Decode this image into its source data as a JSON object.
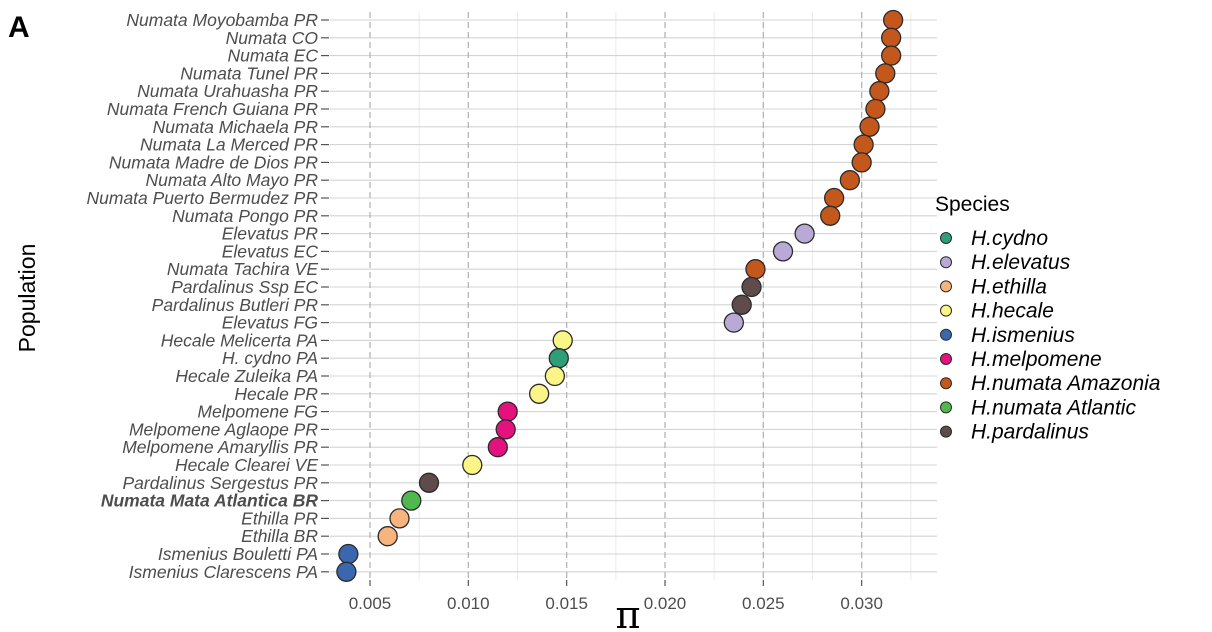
{
  "panel_label": "A",
  "chart_data": {
    "type": "scatter",
    "xlabel": "π",
    "ylabel": "Population",
    "xlim": [
      0.0033,
      0.0337
    ],
    "x_ticks": [
      0.005,
      0.01,
      0.015,
      0.02,
      0.025,
      0.03
    ],
    "x_tick_labels": [
      "0.005",
      "0.010",
      "0.015",
      "0.020",
      "0.025",
      "0.030"
    ],
    "grid": true,
    "legend_title": "Species",
    "legend_position": "right",
    "species": [
      {
        "name": "H.cydno",
        "color": "#2e9e78"
      },
      {
        "name": "H.elevatus",
        "color": "#b8a9d6"
      },
      {
        "name": "H.ethilla",
        "color": "#f7b47c"
      },
      {
        "name": "H.hecale",
        "color": "#fbf587"
      },
      {
        "name": "H.ismenius",
        "color": "#3a67ad"
      },
      {
        "name": "H.melpomene",
        "color": "#e3127f"
      },
      {
        "name": "H.numata Amazonia",
        "color": "#c4571b"
      },
      {
        "name": "H.numata Atlantic",
        "color": "#50b94e"
      },
      {
        "name": "H.pardalinus",
        "color": "#5f4b4b"
      }
    ],
    "points": [
      {
        "population": "Numata Moyobamba PR",
        "pi": 0.0316,
        "species": "H.numata Amazonia"
      },
      {
        "population": "Numata CO",
        "pi": 0.0315,
        "species": "H.numata Amazonia"
      },
      {
        "population": "Numata EC",
        "pi": 0.0315,
        "species": "H.numata Amazonia"
      },
      {
        "population": "Numata Tunel PR",
        "pi": 0.0312,
        "species": "H.numata Amazonia"
      },
      {
        "population": "Numata Urahuasha PR",
        "pi": 0.0309,
        "species": "H.numata Amazonia"
      },
      {
        "population": "Numata French Guiana PR",
        "pi": 0.0307,
        "species": "H.numata Amazonia"
      },
      {
        "population": "Numata Michaela PR",
        "pi": 0.0304,
        "species": "H.numata Amazonia"
      },
      {
        "population": "Numata La Merced PR",
        "pi": 0.0301,
        "species": "H.numata Amazonia"
      },
      {
        "population": "Numata Madre de Dios PR",
        "pi": 0.03,
        "species": "H.numata Amazonia"
      },
      {
        "population": "Numata Alto Mayo PR",
        "pi": 0.0294,
        "species": "H.numata Amazonia"
      },
      {
        "population": "Numata Puerto Bermudez PR",
        "pi": 0.0286,
        "species": "H.numata Amazonia"
      },
      {
        "population": "Numata Pongo PR",
        "pi": 0.0284,
        "species": "H.numata Amazonia"
      },
      {
        "population": "Elevatus PR",
        "pi": 0.0271,
        "species": "H.elevatus"
      },
      {
        "population": "Elevatus EC",
        "pi": 0.026,
        "species": "H.elevatus"
      },
      {
        "population": "Numata Tachira VE",
        "pi": 0.0246,
        "species": "H.numata Amazonia"
      },
      {
        "population": "Pardalinus Ssp EC",
        "pi": 0.0244,
        "species": "H.pardalinus"
      },
      {
        "population": "Pardalinus Butleri PR",
        "pi": 0.0239,
        "species": "H.pardalinus"
      },
      {
        "population": "Elevatus FG",
        "pi": 0.0235,
        "species": "H.elevatus"
      },
      {
        "population": "Hecale Melicerta PA",
        "pi": 0.0148,
        "species": "H.hecale"
      },
      {
        "population": "H. cydno PA",
        "pi": 0.0146,
        "species": "H.cydno"
      },
      {
        "population": "Hecale Zuleika PA",
        "pi": 0.0144,
        "species": "H.hecale"
      },
      {
        "population": "Hecale PR",
        "pi": 0.0136,
        "species": "H.hecale"
      },
      {
        "population": "Melpomene FG",
        "pi": 0.012,
        "species": "H.melpomene"
      },
      {
        "population": "Melpomene Aglaope PR",
        "pi": 0.0119,
        "species": "H.melpomene"
      },
      {
        "population": "Melpomene Amaryllis PR",
        "pi": 0.0115,
        "species": "H.melpomene"
      },
      {
        "population": "Hecale Clearei VE",
        "pi": 0.0102,
        "species": "H.hecale"
      },
      {
        "population": "Pardalinus Sergestus PR",
        "pi": 0.008,
        "species": "H.pardalinus"
      },
      {
        "population": "Numata Mata Atlantica BR",
        "pi": 0.0071,
        "species": "H.numata Atlantic",
        "bold": true
      },
      {
        "population": "Ethilla PR",
        "pi": 0.0065,
        "species": "H.ethilla"
      },
      {
        "population": "Ethilla BR",
        "pi": 0.0059,
        "species": "H.ethilla"
      },
      {
        "population": "Ismenius Bouletti PA",
        "pi": 0.0039,
        "species": "H.ismenius"
      },
      {
        "population": "Ismenius Clarescens PA",
        "pi": 0.0038,
        "species": "H.ismenius"
      }
    ]
  }
}
